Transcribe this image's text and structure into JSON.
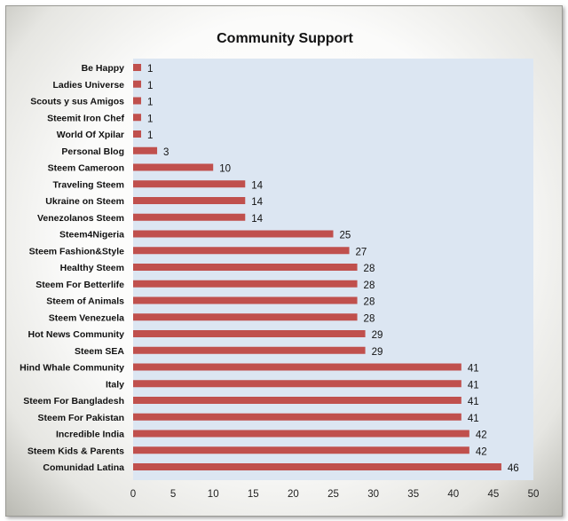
{
  "chart_data": {
    "type": "bar",
    "orientation": "horizontal",
    "title": "Community Support",
    "xlabel": "",
    "ylabel": "",
    "xlim": [
      0,
      50
    ],
    "xticks": [
      0,
      5,
      10,
      15,
      20,
      25,
      30,
      35,
      40,
      45,
      50
    ],
    "grid": false,
    "bar_color": "#c0504d",
    "plot_background": "#dce6f2",
    "categories": [
      "Be Happy",
      "Ladies Universe",
      "Scouts y sus Amigos",
      "Steemit Iron Chef",
      "World Of Xpilar",
      "Personal Blog",
      "Steem Cameroon",
      "Traveling Steem",
      "Ukraine on Steem",
      "Venezolanos Steem",
      "Steem4Nigeria",
      "Steem Fashion&Style",
      "Healthy Steem",
      "Steem For Betterlife",
      "Steem of Animals",
      "Steem Venezuela",
      "Hot News Community",
      "Steem SEA",
      "Hind Whale Community",
      "Italy",
      "Steem For Bangladesh",
      "Steem For Pakistan",
      "Incredible India",
      "Steem Kids & Parents",
      "Comunidad Latina"
    ],
    "values": [
      1,
      1,
      1,
      1,
      1,
      3,
      10,
      14,
      14,
      14,
      25,
      27,
      28,
      28,
      28,
      28,
      29,
      29,
      41,
      41,
      41,
      41,
      42,
      42,
      46
    ]
  }
}
